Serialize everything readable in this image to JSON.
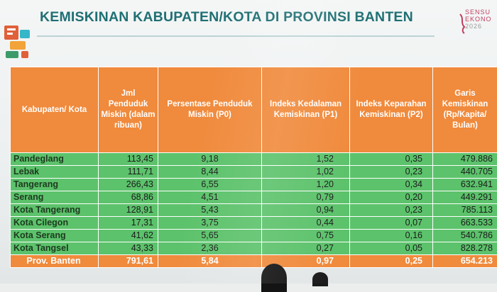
{
  "slide": {
    "title": "KEMISKINAN KABUPATEN/KOTA DI PROVINSI BANTEN",
    "brand_lines": [
      "SENSU",
      "EKONO",
      "2026"
    ]
  },
  "table": {
    "headers": [
      "Kabupaten/ Kota",
      "Jml Penduduk Miskin (dalam ribuan)",
      "Persentase Penduduk Miskin (P0)",
      "Indeks Kedalaman Kemiskinan (P1)",
      "Indeks Keparahan Kemiskinan (P2)",
      "Garis Kemiskinan (Rp/Kapita/ Bulan)"
    ],
    "rows": [
      [
        "Pandeglang",
        "113,45",
        "9,18",
        "1,52",
        "0,35",
        "479.886"
      ],
      [
        "Lebak",
        "111,71",
        "8,44",
        "1,02",
        "0,23",
        "440.705"
      ],
      [
        "Tangerang",
        "266,43",
        "6,55",
        "1,20",
        "0,34",
        "632.941"
      ],
      [
        "Serang",
        "68,86",
        "4,51",
        "0,79",
        "0,20",
        "449.291"
      ],
      [
        "Kota Tangerang",
        "128,91",
        "5,43",
        "0,94",
        "0,23",
        "785.113"
      ],
      [
        "Kota Cilegon",
        "17,31",
        "3,75",
        "0,44",
        "0,07",
        "663.533"
      ],
      [
        "Kota Serang",
        "41,62",
        "5,65",
        "0,75",
        "0,16",
        "540.786"
      ],
      [
        "Kota Tangsel",
        "43,33",
        "2,36",
        "0,27",
        "0,05",
        "828.278"
      ]
    ],
    "total": [
      "Prov. Banten",
      "791,61",
      "5,84",
      "0,97",
      "0,25",
      "654.213"
    ]
  },
  "colors": {
    "title": "#1f6f73",
    "header_bg": "#f08a3c",
    "row_bg": "#5cc26b",
    "total_bg": "#f08a3c"
  }
}
